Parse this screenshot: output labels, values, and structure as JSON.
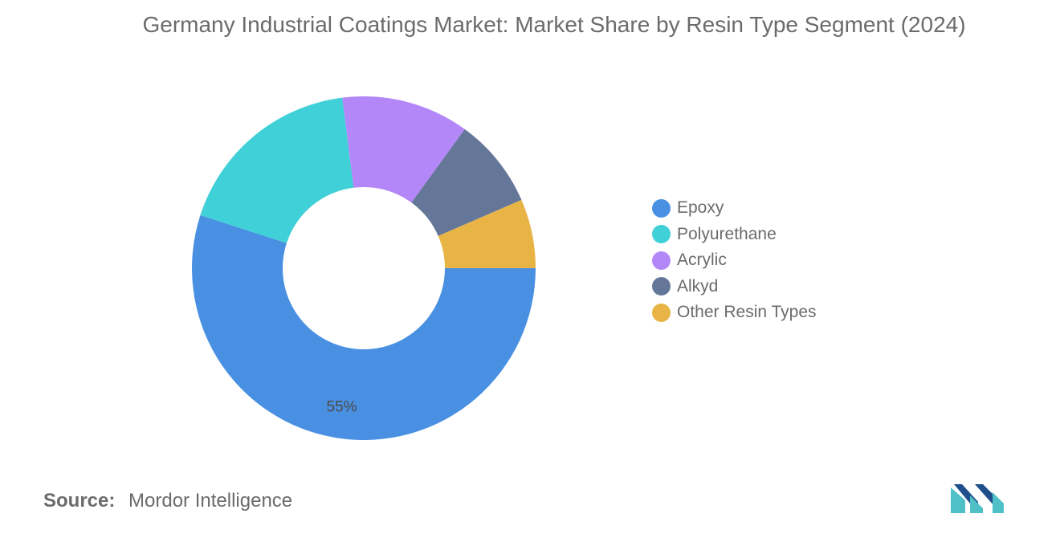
{
  "chart_data": {
    "type": "pie",
    "subtype": "donut",
    "title": "Germany Industrial Coatings Market: Market Share by Resin Type Segment (2024)",
    "series": [
      {
        "name": "Epoxy",
        "value": 55,
        "color": "#4a90e2",
        "label": "55%"
      },
      {
        "name": "Polyurethane",
        "value": 18,
        "color": "#3fd0d8",
        "label": ""
      },
      {
        "name": "Acrylic",
        "value": 12,
        "color": "#b387f7",
        "label": ""
      },
      {
        "name": "Alkyd",
        "value": 8.5,
        "color": "#657799",
        "label": ""
      },
      {
        "name": "Other Resin Types",
        "value": 6.5,
        "color": "#e8b446",
        "label": ""
      }
    ],
    "legend_position": "right"
  },
  "footer": {
    "source_label": "Source:",
    "source_value": "Mordor Intelligence"
  },
  "logo": {
    "icon": "mordor-intelligence-logo",
    "color_dark": "#1f4e8c",
    "color_light": "#4fc1c6"
  }
}
